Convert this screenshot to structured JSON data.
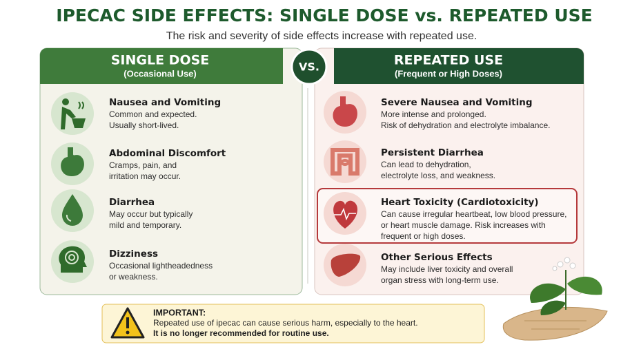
{
  "header": {
    "title": "IPECAC SIDE EFFECTS: SINGLE DOSE vs. REPEATED USE",
    "subtitle": "The risk and severity of side effects increase with repeated use."
  },
  "single": {
    "title": "SINGLE DOSE",
    "subtitle": "(Occasional Use)",
    "items": [
      {
        "title": "Nausea and Vomiting",
        "lines": [
          "Common and expected.",
          "Usually short-lived."
        ]
      },
      {
        "title": "Abdominal Discomfort",
        "lines": [
          "Cramps, pain, and",
          "irritation may occur."
        ]
      },
      {
        "title": "Diarrhea",
        "lines": [
          "May occur but typically",
          "mild and temporary."
        ]
      },
      {
        "title": "Dizziness",
        "lines": [
          "Occasional lightheadedness",
          "or weakness."
        ]
      }
    ]
  },
  "vs": "VS.",
  "repeated": {
    "title": "REPEATED USE",
    "subtitle": "(Frequent or High Doses)",
    "items": [
      {
        "title": "Severe Nausea and Vomiting",
        "lines": [
          "More intense and prolonged.",
          "Risk of dehydration and electrolyte imbalance."
        ]
      },
      {
        "title": "Persistent Diarrhea",
        "lines": [
          "Can lead to dehydration,",
          "electrolyte loss, and weakness."
        ]
      },
      {
        "title": "Heart Toxicity (Cardiotoxicity)",
        "lines": [
          "Can cause irregular heartbeat, low blood pressure,",
          "or heart muscle damage. Risk increases with",
          "frequent or high doses."
        ]
      },
      {
        "title": "Other Serious Effects",
        "lines": [
          "May include liver toxicity and overall",
          "organ stress with long-term use."
        ]
      }
    ]
  },
  "important": {
    "label": "IMPORTANT:",
    "lines": [
      "Repeated use of ipecac can cause serious harm, especially to the heart.",
      "It is no longer recommended for routine use."
    ]
  }
}
